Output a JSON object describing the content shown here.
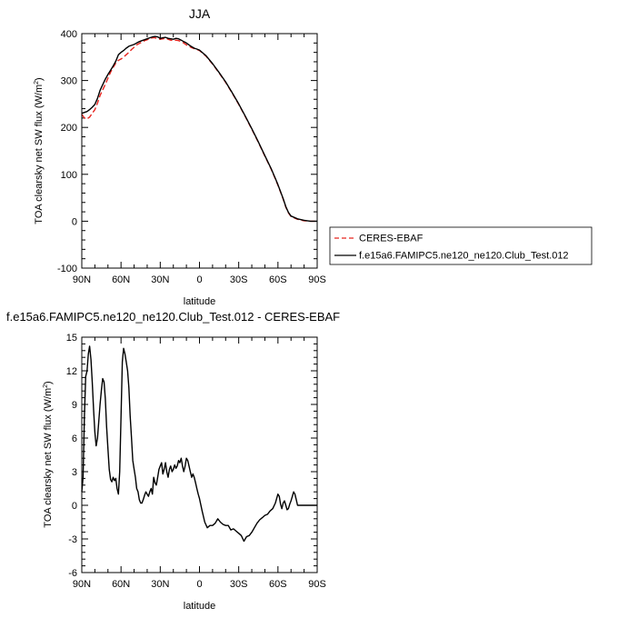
{
  "chart_data": [
    {
      "type": "line",
      "title": "JJA",
      "xlabel": "latitude",
      "ylabel": "TOA clearsky net SW flux (W/m²)",
      "ylabel_main": "TOA clearsky net SW flux (W/m",
      "ylabel_sup": "2",
      "ylabel_end": ")",
      "xlim": [
        90,
        -90
      ],
      "ylim": [
        -100,
        400
      ],
      "xticks": [
        90,
        60,
        30,
        0,
        -30,
        -60,
        -90
      ],
      "xtick_labels": [
        "90N",
        "60N",
        "30N",
        "0",
        "30S",
        "60S",
        "90S"
      ],
      "yticks": [
        -100,
        0,
        100,
        200,
        300,
        400
      ],
      "ytick_labels": [
        "-100",
        "0",
        "100",
        "200",
        "300",
        "400"
      ],
      "legend_position": "right-below",
      "series": [
        {
          "name": "CERES-EBAF",
          "color": "#e8251f",
          "dash": "dashed",
          "x": [
            90,
            88,
            86,
            84,
            82,
            80,
            78,
            76,
            74,
            72,
            70,
            68,
            66,
            64,
            62,
            60,
            58,
            56,
            54,
            52,
            50,
            48,
            46,
            44,
            42,
            40,
            38,
            36,
            34,
            32,
            30,
            28,
            26,
            24,
            22,
            20,
            18,
            16,
            14,
            12,
            10,
            8,
            6,
            4,
            2,
            0,
            -5,
            -10,
            -15,
            -20,
            -25,
            -30,
            -35,
            -40,
            -45,
            -50,
            -55,
            -58,
            -60,
            -62,
            -64,
            -66,
            -68,
            -70,
            -75,
            -80,
            -85,
            -90
          ],
          "y": [
            228,
            220,
            218,
            222,
            230,
            238,
            252,
            268,
            280,
            292,
            305,
            318,
            328,
            337,
            343,
            346,
            350,
            355,
            360,
            366,
            371,
            376,
            379,
            382,
            385,
            387,
            389,
            391,
            391,
            389,
            388,
            389,
            390,
            388,
            386,
            385,
            386,
            385,
            383,
            380,
            376,
            373,
            370,
            368,
            366,
            364,
            352,
            335,
            316,
            296,
            273,
            249,
            223,
            196,
            168,
            139,
            110,
            90,
            77,
            62,
            47,
            30,
            18,
            10,
            4,
            1,
            0,
            0
          ]
        },
        {
          "name": "f.e15a6.FAMIPC5.ne120_ne120.Club_Test.012",
          "color": "#000000",
          "dash": "solid",
          "x": [
            90,
            88,
            86,
            84,
            82,
            80,
            78,
            76,
            74,
            72,
            70,
            68,
            66,
            64,
            62,
            60,
            58,
            56,
            54,
            52,
            50,
            48,
            46,
            44,
            42,
            40,
            38,
            36,
            34,
            32,
            30,
            28,
            26,
            24,
            22,
            20,
            18,
            16,
            14,
            12,
            10,
            8,
            6,
            4,
            2,
            0,
            -5,
            -10,
            -15,
            -20,
            -25,
            -30,
            -35,
            -40,
            -45,
            -50,
            -55,
            -58,
            -60,
            -62,
            -64,
            -66,
            -68,
            -70,
            -75,
            -80,
            -85,
            -90
          ],
          "y": [
            230,
            232,
            234,
            238,
            243,
            249,
            262,
            279,
            291,
            303,
            313,
            322,
            331,
            341,
            355,
            360,
            364,
            369,
            373,
            375,
            377,
            380,
            383,
            385,
            387,
            389,
            391,
            393,
            394,
            393,
            390,
            391,
            392,
            390,
            389,
            388,
            390,
            389,
            386,
            383,
            380,
            376,
            372,
            369,
            367,
            365,
            353,
            336,
            317,
            297,
            274,
            250,
            224,
            197,
            169,
            140,
            111,
            91,
            78,
            63,
            48,
            31,
            19,
            11,
            5,
            2,
            0,
            0
          ]
        }
      ]
    },
    {
      "type": "line",
      "title": "f.e15a6.FAMIPC5.ne120_ne120.Club_Test.012 - CERES-EBAF",
      "xlabel": "latitude",
      "ylabel": "TOA clearsky net SW flux (W/m²)",
      "ylabel_main": "TOA clearsky net SW flux (W/m",
      "ylabel_sup": "2",
      "ylabel_end": ")",
      "xlim": [
        90,
        -90
      ],
      "ylim": [
        -6,
        15
      ],
      "xticks": [
        90,
        60,
        30,
        0,
        -30,
        -60,
        -90
      ],
      "xtick_labels": [
        "90N",
        "60N",
        "30N",
        "0",
        "30S",
        "60S",
        "90S"
      ],
      "yticks": [
        -6,
        -3,
        0,
        3,
        6,
        9,
        12,
        15
      ],
      "ytick_labels": [
        "-6",
        "-3",
        "0",
        "3",
        "6",
        "9",
        "12",
        "15"
      ],
      "series": [
        {
          "color": "#000000",
          "dash": "solid",
          "x": [
            90,
            89,
            88,
            87,
            86,
            85,
            84,
            83,
            82,
            81,
            80,
            79,
            78,
            77,
            76,
            75,
            74,
            73,
            72,
            71,
            70,
            69,
            68,
            67,
            66,
            65,
            64,
            63,
            62,
            61,
            60,
            59,
            58,
            57,
            56,
            55,
            54,
            53,
            52,
            51,
            50,
            49,
            48,
            47,
            46,
            45,
            44,
            43,
            42,
            41,
            40,
            39,
            38,
            37,
            36,
            35,
            34,
            33,
            32,
            31,
            30,
            29,
            28,
            27,
            26,
            25,
            24,
            23,
            22,
            21,
            20,
            19,
            18,
            17,
            16,
            15,
            14,
            13,
            12,
            11,
            10,
            9,
            8,
            7,
            6,
            5,
            4,
            3,
            2,
            1,
            0,
            -2,
            -4,
            -6,
            -8,
            -10,
            -12,
            -14,
            -16,
            -18,
            -20,
            -22,
            -24,
            -26,
            -28,
            -30,
            -32,
            -34,
            -36,
            -38,
            -40,
            -42,
            -44,
            -46,
            -48,
            -50,
            -52,
            -54,
            -56,
            -58,
            -59,
            -60,
            -61,
            -62,
            -63,
            -64,
            -65,
            -66,
            -67,
            -68,
            -69,
            -70,
            -71,
            -72,
            -73,
            -74,
            -75,
            -76,
            -78,
            -80,
            -82,
            -84,
            -86,
            -88,
            -90
          ],
          "y": [
            1.2,
            2.5,
            8.0,
            11.5,
            12.0,
            13.5,
            14.2,
            13.0,
            11.0,
            8.5,
            6.5,
            5.3,
            6.0,
            7.5,
            9.0,
            10.3,
            11.3,
            11.0,
            9.5,
            7.0,
            5.0,
            3.2,
            2.3,
            2.1,
            2.5,
            2.2,
            2.4,
            1.5,
            1.0,
            3.0,
            8.0,
            12.8,
            14.0,
            13.5,
            12.8,
            12.0,
            10.5,
            8.0,
            6.0,
            4.0,
            3.2,
            2.5,
            1.5,
            1.2,
            0.5,
            0.2,
            0.2,
            0.5,
            0.9,
            1.2,
            1.0,
            0.8,
            1.2,
            1.5,
            1.0,
            2.5,
            2.0,
            1.8,
            2.5,
            3.2,
            3.5,
            3.8,
            2.8,
            3.2,
            3.8,
            3.0,
            2.5,
            3.2,
            3.5,
            3.0,
            3.2,
            3.6,
            3.3,
            3.5,
            4.0,
            3.8,
            4.2,
            3.5,
            3.0,
            3.5,
            4.2,
            4.0,
            3.5,
            3.0,
            2.5,
            2.8,
            2.5,
            2.0,
            1.5,
            1.0,
            0.6,
            -0.5,
            -1.5,
            -2.0,
            -1.8,
            -1.8,
            -1.6,
            -1.2,
            -1.5,
            -1.7,
            -1.8,
            -1.8,
            -2.2,
            -2.1,
            -2.3,
            -2.5,
            -2.7,
            -3.2,
            -2.8,
            -2.7,
            -2.4,
            -2.0,
            -1.6,
            -1.3,
            -1.1,
            -0.9,
            -0.8,
            -0.5,
            -0.3,
            0.2,
            0.6,
            1.0,
            0.8,
            0.1,
            -0.3,
            0.2,
            0.4,
            0.0,
            -0.4,
            -0.3,
            0.1,
            0.4,
            0.8,
            1.2,
            1.0,
            0.5,
            0.0,
            0.0,
            0.0,
            0.0,
            0.0,
            0.0,
            0.0,
            0.0,
            0.0
          ]
        }
      ]
    }
  ]
}
